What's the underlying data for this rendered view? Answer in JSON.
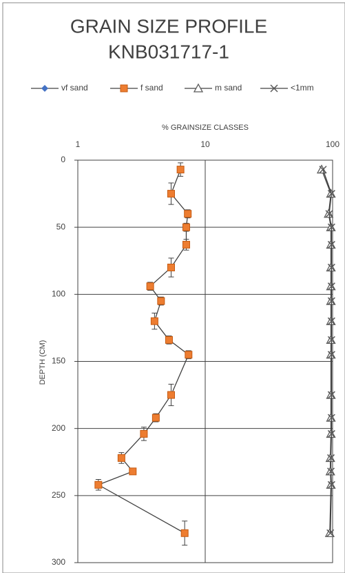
{
  "chart_data": {
    "type": "scatter-profile",
    "title": "GRAIN SIZE PROFILE",
    "subtitle": "KNB031717-1",
    "x_label": "% GRAINSIZE CLASSES",
    "y_label": "DEPTH (CM)",
    "x_log": true,
    "y_inverted": true,
    "grid": true,
    "xlim": [
      1,
      100
    ],
    "xticks": [
      1,
      10,
      100
    ],
    "ylim": [
      0,
      300
    ],
    "yticks": [
      0,
      50,
      100,
      150,
      200,
      250,
      300
    ],
    "series": [
      {
        "name": "vf sand",
        "color": "#4472c4",
        "marker": "diamond",
        "x": [],
        "y": []
      },
      {
        "name": "f sand",
        "color": "#ed7d31",
        "marker": "square",
        "x": [
          6.4,
          5.4,
          7.3,
          7.1,
          7.1,
          5.4,
          3.7,
          4.5,
          4.0,
          5.2,
          7.4,
          5.4,
          4.1,
          3.3,
          2.2,
          2.7,
          1.45,
          6.9
        ],
        "y": [
          7,
          25,
          40,
          50,
          63,
          80,
          94,
          105,
          120,
          134,
          145,
          175,
          192,
          204,
          222,
          232,
          242,
          278
        ],
        "yerr": [
          5,
          8,
          3,
          3,
          4,
          7,
          3,
          3,
          6,
          3,
          3,
          8,
          3,
          5,
          4,
          2,
          4,
          9
        ]
      },
      {
        "name": "m sand",
        "color": "#595959",
        "marker": "triangle",
        "x": [
          82,
          97,
          93,
          97,
          97,
          97,
          97,
          97,
          97,
          97,
          97,
          97,
          97,
          97,
          96,
          96,
          97,
          95
        ],
        "y": [
          7,
          25,
          40,
          50,
          63,
          80,
          94,
          105,
          120,
          134,
          145,
          175,
          192,
          204,
          222,
          232,
          242,
          278
        ]
      },
      {
        "name": "<1mm",
        "color": "#595959",
        "marker": "cross",
        "x": [
          84,
          98,
          94,
          98,
          98,
          98,
          98,
          98,
          98,
          98,
          98,
          98,
          98,
          98,
          97,
          97,
          98,
          96
        ],
        "y": [
          7,
          25,
          40,
          50,
          63,
          80,
          94,
          105,
          120,
          134,
          145,
          175,
          192,
          204,
          222,
          232,
          242,
          278
        ]
      }
    ]
  }
}
